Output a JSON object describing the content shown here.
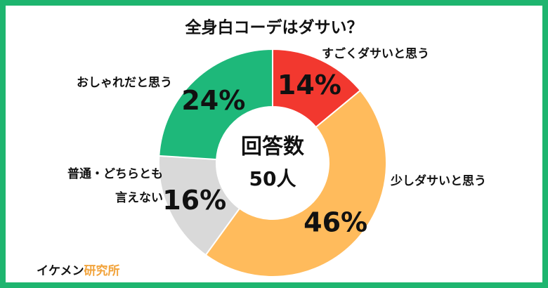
{
  "chart_data": {
    "type": "pie",
    "donut": true,
    "title": "全身白コーデはダサい？",
    "center_text": [
      "回答数",
      "50人"
    ],
    "categories": [
      "すごくダサいと思う",
      "少しダサいと思う",
      "普通・どちらとも言えない",
      "おしゃれだと思う"
    ],
    "values": [
      14,
      46,
      16,
      24
    ],
    "value_labels": [
      "14%",
      "46%",
      "16%",
      "24%"
    ],
    "colors": [
      "#f2382f",
      "#ffbb5c",
      "#d9d9d9",
      "#1eb87a"
    ],
    "brand": [
      "イケメン",
      "研究所"
    ]
  }
}
